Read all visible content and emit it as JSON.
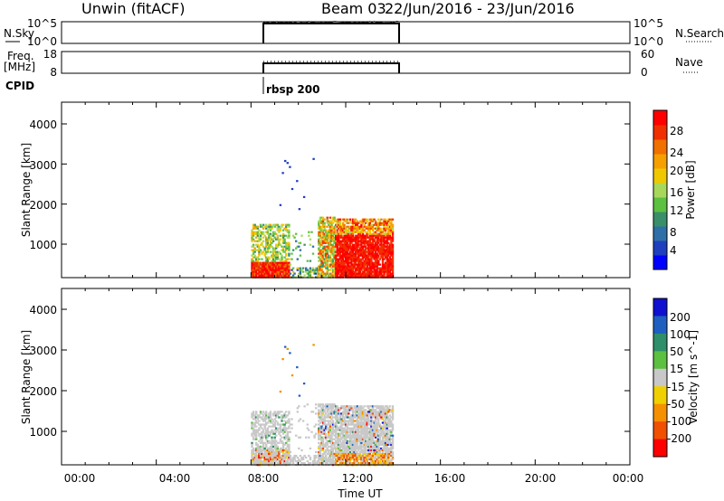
{
  "header": {
    "station": "Unwin (fitACF)",
    "beam": "Beam 03",
    "date_range": "22/Jun/2016 - 23/Jun/2016"
  },
  "nsky_panel": {
    "left_label": "N.Sky",
    "right_label": "N.Search",
    "left_ticks": [
      "10^5",
      "10^0"
    ],
    "right_ticks": [
      "10^5",
      "10^0"
    ]
  },
  "freq_panel": {
    "left_label_1": "Freq.",
    "left_label_2": "[MHz]",
    "right_label": "Nave",
    "left_ticks": [
      "18",
      "8"
    ],
    "right_ticks": [
      "60",
      "0"
    ]
  },
  "cpid": {
    "label": "CPID",
    "program": "rbsp 200"
  },
  "time_axis": {
    "label": "Time UT",
    "ticks": [
      "00:00",
      "04:00",
      "08:00",
      "12:00",
      "16:00",
      "20:00",
      "00:00"
    ]
  },
  "chart_data": [
    {
      "type": "heatmap",
      "name_key": "power",
      "ylabel": "Slant Range [km]",
      "yticks": [
        1000,
        2000,
        3000,
        4000
      ],
      "ylim": [
        180,
        4500
      ],
      "xlim_hours": [
        0,
        24
      ],
      "data_window_hours": [
        8,
        14
      ],
      "colorbar": {
        "label": "Power [dB]",
        "ticks": [
          "4",
          "8",
          "12",
          "16",
          "20",
          "24",
          "28"
        ],
        "colors": [
          "#0000ff",
          "#1f3fbf",
          "#2e6fa8",
          "#3a8f6a",
          "#5cc040",
          "#a8d85a",
          "#f0c800",
          "#f5a000",
          "#f07000",
          "#f03000",
          "#ff0000"
        ]
      }
    },
    {
      "type": "heatmap",
      "name_key": "velocity",
      "ylabel": "Slant Range [km]",
      "yticks": [
        1000,
        2000,
        3000,
        4000
      ],
      "ylim": [
        180,
        4500
      ],
      "xlim_hours": [
        0,
        24
      ],
      "data_window_hours": [
        8,
        14
      ],
      "colorbar": {
        "label": "Velocity [m s^-1]",
        "ticks": [
          "200",
          "100",
          "50",
          "15",
          "-15",
          "-50",
          "-100",
          "-200"
        ],
        "colors": [
          "#1010d0",
          "#1f5fbf",
          "#2e8f6a",
          "#5cc040",
          "#c8c8c8",
          "#f0d000",
          "#f59000",
          "#f05000",
          "#ff0000"
        ]
      }
    }
  ]
}
